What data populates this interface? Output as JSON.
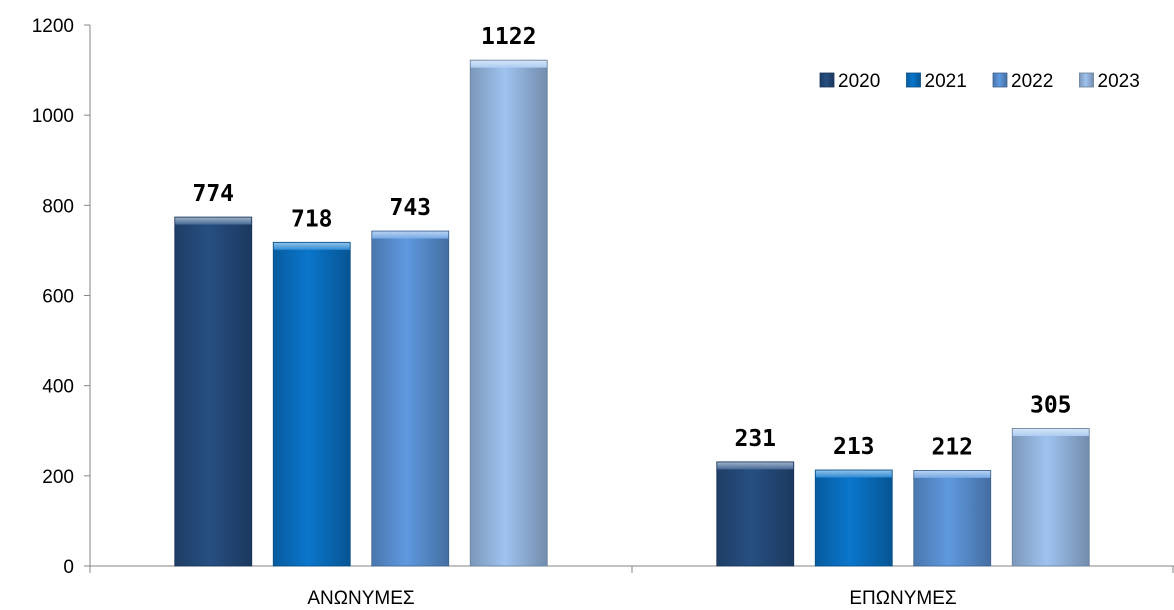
{
  "chart_data": {
    "type": "bar",
    "categories": [
      "ΑΝΩΝΥΜΕΣ",
      "ΕΠΩΝΥΜΕΣ"
    ],
    "series": [
      {
        "name": "2020",
        "values": [
          774,
          231
        ],
        "color": "#264f82"
      },
      {
        "name": "2021",
        "values": [
          718,
          213
        ],
        "color": "#0a76cc"
      },
      {
        "name": "2022",
        "values": [
          743,
          212
        ],
        "color": "#5f99df"
      },
      {
        "name": "2023",
        "values": [
          1122,
          305
        ],
        "color": "#9fc3ef"
      }
    ],
    "y_ticks": [
      0,
      200,
      400,
      600,
      800,
      1000,
      1200
    ],
    "ylim": [
      0,
      1200
    ],
    "grid": false,
    "legend_position": "top-right",
    "data_labels": true
  }
}
